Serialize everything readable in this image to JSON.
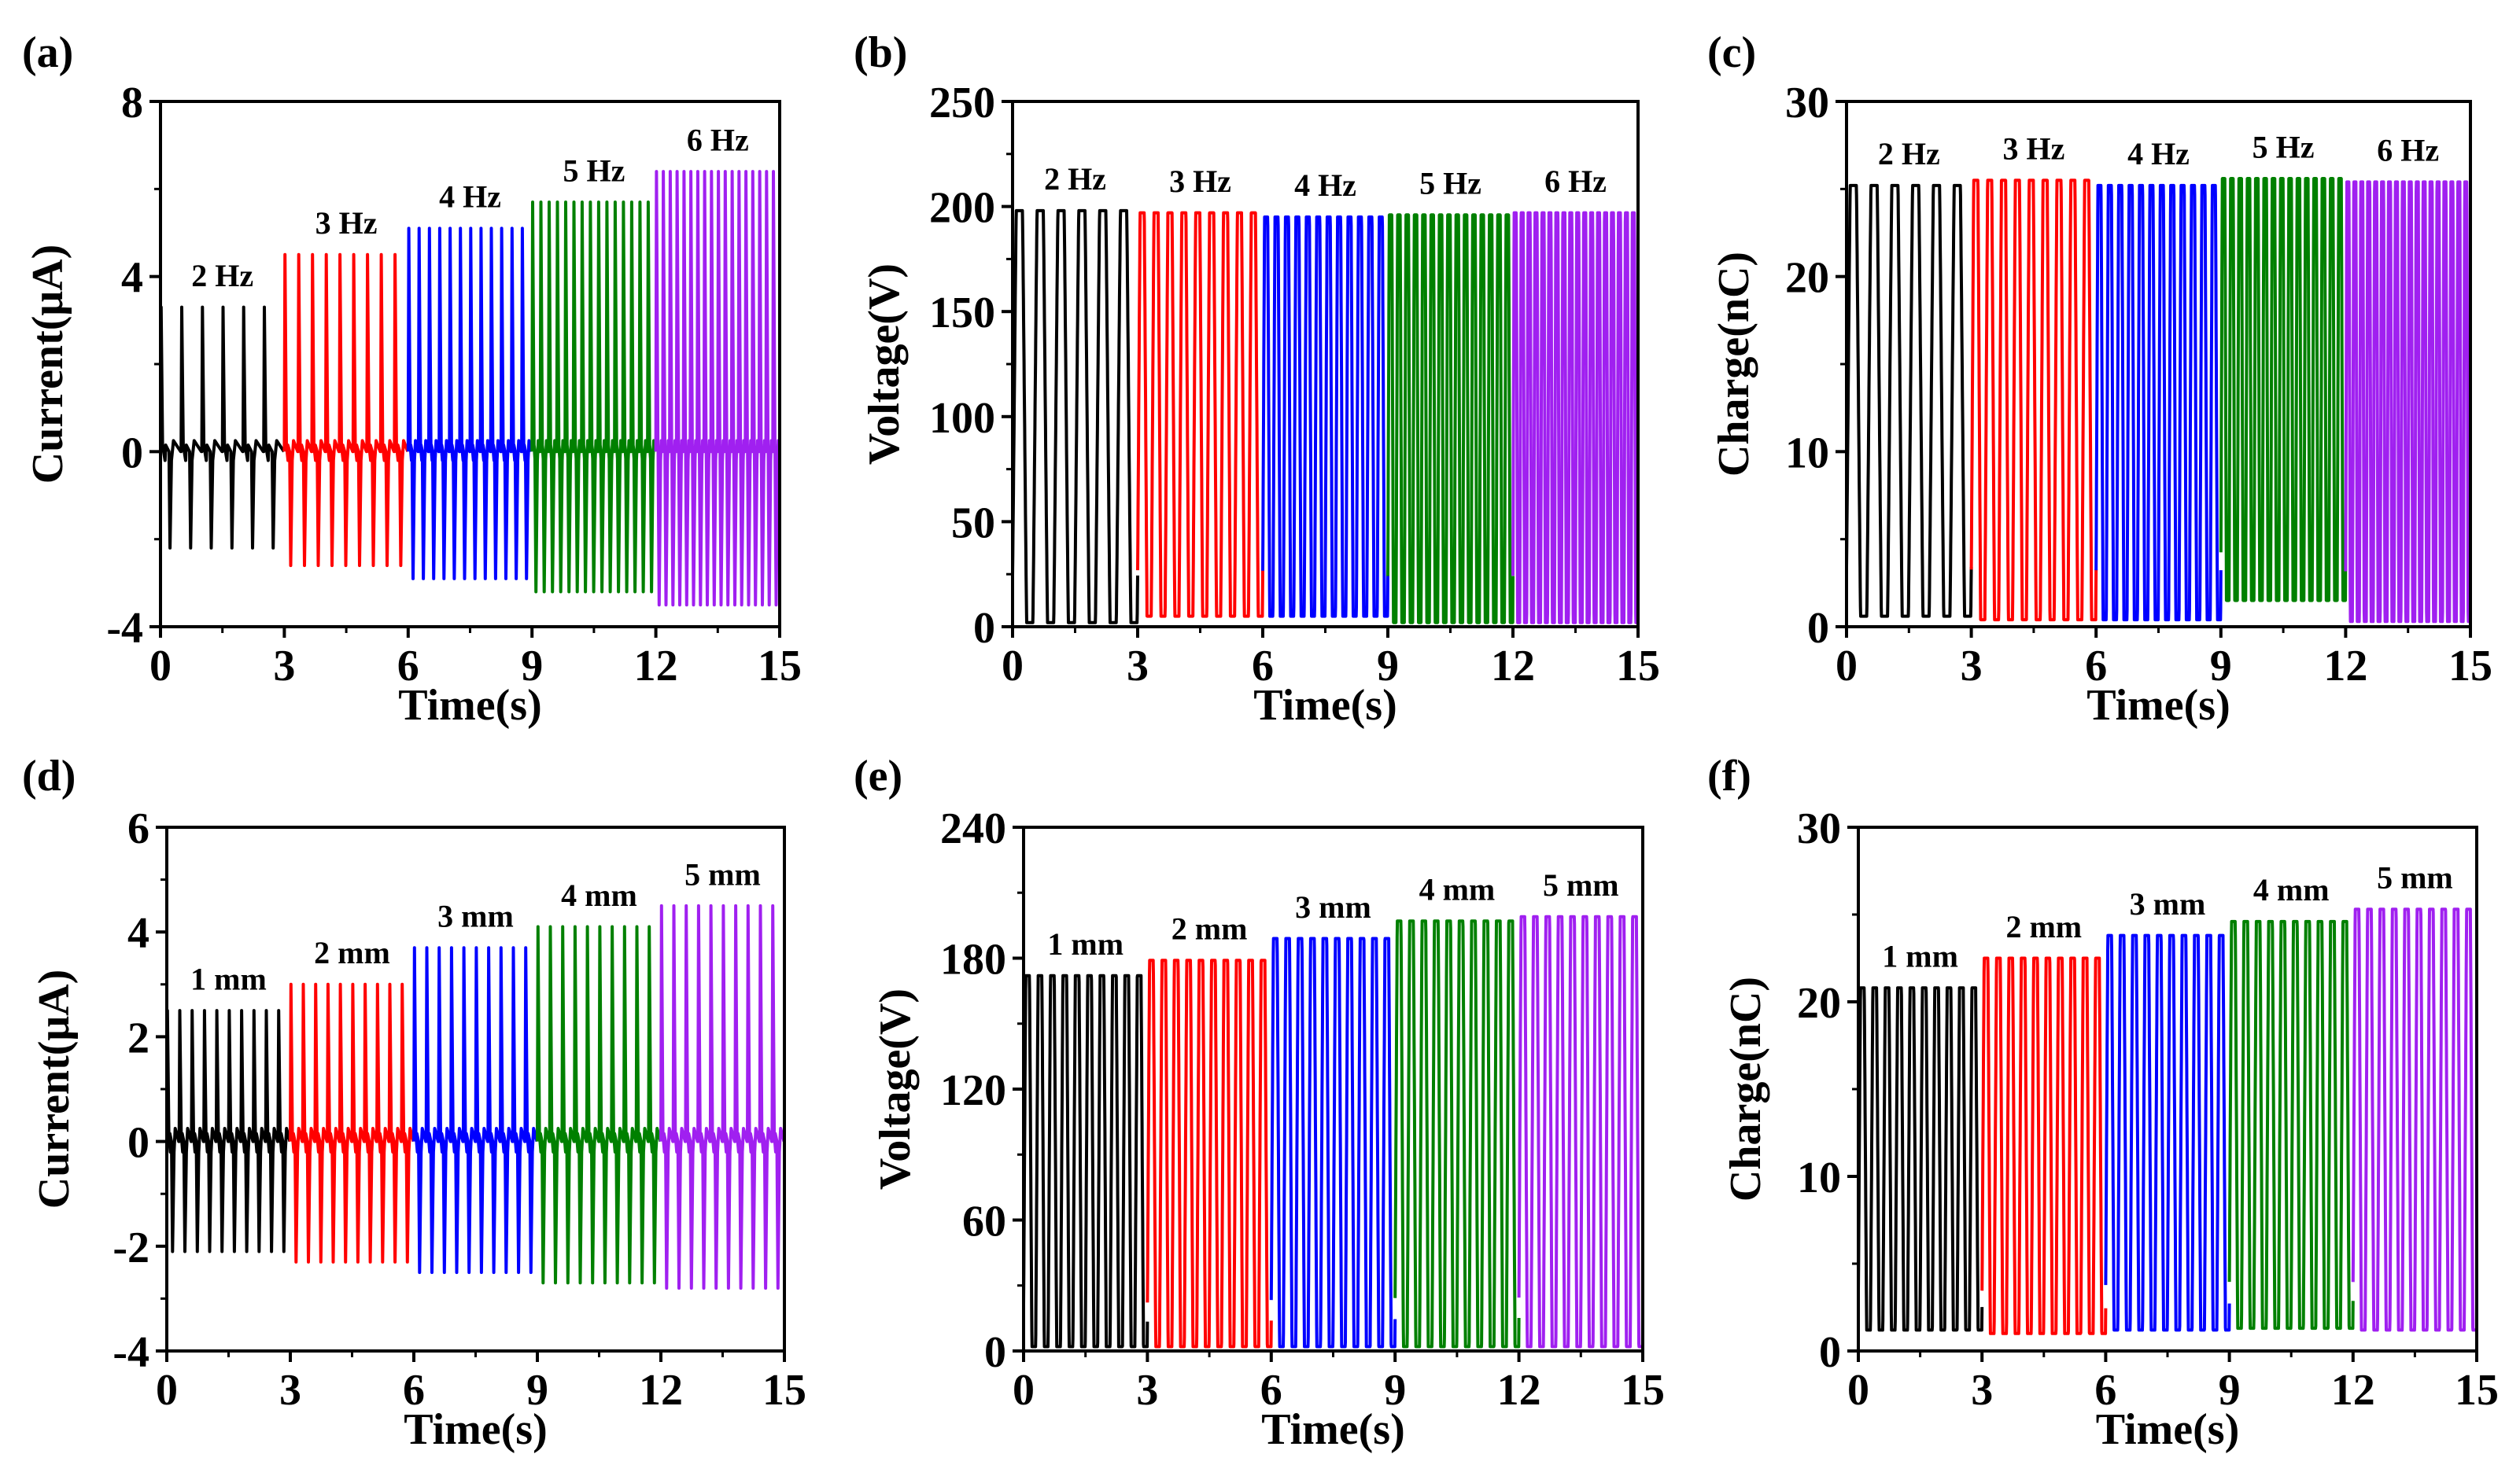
{
  "chart_data": [
    {
      "id": "a",
      "panel_label": "(a)",
      "type": "line",
      "xlabel": "Time(s)",
      "ylabel": "Current(μA)",
      "xlim": [
        0,
        15
      ],
      "ylim": [
        -4,
        8
      ],
      "xticks": [
        "0",
        "3",
        "6",
        "9",
        "12",
        "15"
      ],
      "yticks": [
        "-4",
        "0",
        "4",
        "8"
      ],
      "wave": "pulse",
      "series": [
        {
          "name": "2 Hz",
          "color": "#000000",
          "x_range": [
            0,
            3
          ],
          "freq_hz": 2,
          "peak": 3.3,
          "trough": -2.2
        },
        {
          "name": "3 Hz",
          "color": "#ff0000",
          "x_range": [
            3,
            6
          ],
          "freq_hz": 3,
          "peak": 4.5,
          "trough": -2.6
        },
        {
          "name": "4 Hz",
          "color": "#0000ff",
          "x_range": [
            6,
            9
          ],
          "freq_hz": 4,
          "peak": 5.1,
          "trough": -2.9
        },
        {
          "name": "5 Hz",
          "color": "#008000",
          "x_range": [
            9,
            12
          ],
          "freq_hz": 5,
          "peak": 5.7,
          "trough": -3.2
        },
        {
          "name": "6 Hz",
          "color": "#a020f0",
          "x_range": [
            12,
            15
          ],
          "freq_hz": 6,
          "peak": 6.4,
          "trough": -3.5
        }
      ]
    },
    {
      "id": "b",
      "panel_label": "(b)",
      "type": "line",
      "xlabel": "Time(s)",
      "ylabel": "Voltage(V)",
      "xlim": [
        0,
        15
      ],
      "ylim": [
        0,
        250
      ],
      "xticks": [
        "0",
        "3",
        "6",
        "9",
        "12",
        "15"
      ],
      "yticks": [
        "0",
        "50",
        "100",
        "150",
        "200",
        "250"
      ],
      "wave": "square",
      "series": [
        {
          "name": "2 Hz",
          "color": "#000000",
          "x_range": [
            0,
            3
          ],
          "freq_hz": 2,
          "peak": 198,
          "trough": 2
        },
        {
          "name": "3 Hz",
          "color": "#ff0000",
          "x_range": [
            3,
            6
          ],
          "freq_hz": 3,
          "peak": 197,
          "trough": 5
        },
        {
          "name": "4 Hz",
          "color": "#0000ff",
          "x_range": [
            6,
            9
          ],
          "freq_hz": 4,
          "peak": 195,
          "trough": 5
        },
        {
          "name": "5 Hz",
          "color": "#008000",
          "x_range": [
            9,
            12
          ],
          "freq_hz": 5,
          "peak": 196,
          "trough": 2
        },
        {
          "name": "6 Hz",
          "color": "#a020f0",
          "x_range": [
            12,
            15
          ],
          "freq_hz": 6,
          "peak": 197,
          "trough": 2
        }
      ]
    },
    {
      "id": "c",
      "panel_label": "(c)",
      "type": "line",
      "xlabel": "Time(s)",
      "ylabel": "Charge(nC)",
      "xlim": [
        0,
        15
      ],
      "ylim": [
        0,
        30
      ],
      "xticks": [
        "0",
        "3",
        "6",
        "9",
        "12",
        "15"
      ],
      "yticks": [
        "0",
        "10",
        "20",
        "30"
      ],
      "wave": "square",
      "series": [
        {
          "name": "2 Hz",
          "color": "#000000",
          "x_range": [
            0,
            3
          ],
          "freq_hz": 2,
          "peak": 25.2,
          "trough": 0.6
        },
        {
          "name": "3 Hz",
          "color": "#ff0000",
          "x_range": [
            3,
            6
          ],
          "freq_hz": 3,
          "peak": 25.5,
          "trough": 0.4
        },
        {
          "name": "4 Hz",
          "color": "#0000ff",
          "x_range": [
            6,
            9
          ],
          "freq_hz": 4,
          "peak": 25.2,
          "trough": 0.4
        },
        {
          "name": "5 Hz",
          "color": "#008000",
          "x_range": [
            9,
            12
          ],
          "freq_hz": 5,
          "peak": 25.6,
          "trough": 1.5
        },
        {
          "name": "6 Hz",
          "color": "#a020f0",
          "x_range": [
            12,
            15
          ],
          "freq_hz": 6,
          "peak": 25.4,
          "trough": 0.3
        }
      ]
    },
    {
      "id": "d",
      "panel_label": "(d)",
      "type": "line",
      "xlabel": "Time(s)",
      "ylabel": "Current(μA)",
      "xlim": [
        0,
        15
      ],
      "ylim": [
        -4,
        6
      ],
      "xticks": [
        "0",
        "3",
        "6",
        "9",
        "12",
        "15"
      ],
      "yticks": [
        "-4",
        "-2",
        "0",
        "2",
        "4",
        "6"
      ],
      "wave": "pulse",
      "series": [
        {
          "name": "1 mm",
          "color": "#000000",
          "x_range": [
            0,
            3
          ],
          "freq_hz": 3.33,
          "peak": 2.5,
          "trough": -2.1
        },
        {
          "name": "2 mm",
          "color": "#ff0000",
          "x_range": [
            3,
            6
          ],
          "freq_hz": 3.33,
          "peak": 3.0,
          "trough": -2.3
        },
        {
          "name": "3 mm",
          "color": "#0000ff",
          "x_range": [
            6,
            9
          ],
          "freq_hz": 3.33,
          "peak": 3.7,
          "trough": -2.5
        },
        {
          "name": "4 mm",
          "color": "#008000",
          "x_range": [
            9,
            12
          ],
          "freq_hz": 3.33,
          "peak": 4.1,
          "trough": -2.7
        },
        {
          "name": "5 mm",
          "color": "#a020f0",
          "x_range": [
            12,
            15
          ],
          "freq_hz": 3.33,
          "peak": 4.5,
          "trough": -2.8
        }
      ]
    },
    {
      "id": "e",
      "panel_label": "(e)",
      "type": "line",
      "xlabel": "Time(s)",
      "ylabel": "Voltage(V)",
      "xlim": [
        0,
        15
      ],
      "ylim": [
        0,
        240
      ],
      "xticks": [
        "0",
        "3",
        "6",
        "9",
        "12",
        "15"
      ],
      "yticks": [
        "0",
        "60",
        "120",
        "180",
        "240"
      ],
      "wave": "square",
      "series": [
        {
          "name": "1 mm",
          "color": "#000000",
          "x_range": [
            0,
            3
          ],
          "freq_hz": 3.33,
          "peak": 172,
          "trough": 2
        },
        {
          "name": "2 mm",
          "color": "#ff0000",
          "x_range": [
            3,
            6
          ],
          "freq_hz": 3.33,
          "peak": 179,
          "trough": 2
        },
        {
          "name": "3 mm",
          "color": "#0000ff",
          "x_range": [
            6,
            9
          ],
          "freq_hz": 3.33,
          "peak": 189,
          "trough": 2
        },
        {
          "name": "4 mm",
          "color": "#008000",
          "x_range": [
            9,
            12
          ],
          "freq_hz": 3.33,
          "peak": 197,
          "trough": 2
        },
        {
          "name": "5 mm",
          "color": "#a020f0",
          "x_range": [
            12,
            15
          ],
          "freq_hz": 3.33,
          "peak": 199,
          "trough": 2
        }
      ]
    },
    {
      "id": "f",
      "panel_label": "(f)",
      "type": "line",
      "xlabel": "Time(s)",
      "ylabel": "Charge(nC)",
      "xlim": [
        0,
        15
      ],
      "ylim": [
        0,
        30
      ],
      "xticks": [
        "0",
        "3",
        "6",
        "9",
        "12",
        "15"
      ],
      "yticks": [
        "0",
        "10",
        "20",
        "30"
      ],
      "wave": "square",
      "series": [
        {
          "name": "1 mm",
          "color": "#000000",
          "x_range": [
            0,
            3
          ],
          "freq_hz": 3.33,
          "peak": 20.8,
          "trough": 1.2
        },
        {
          "name": "2 mm",
          "color": "#ff0000",
          "x_range": [
            3,
            6
          ],
          "freq_hz": 3.33,
          "peak": 22.5,
          "trough": 1.0
        },
        {
          "name": "3 mm",
          "color": "#0000ff",
          "x_range": [
            6,
            9
          ],
          "freq_hz": 3.33,
          "peak": 23.8,
          "trough": 1.2
        },
        {
          "name": "4 mm",
          "color": "#008000",
          "x_range": [
            9,
            12
          ],
          "freq_hz": 3.33,
          "peak": 24.6,
          "trough": 1.3
        },
        {
          "name": "5 mm",
          "color": "#a020f0",
          "x_range": [
            12,
            15
          ],
          "freq_hz": 3.33,
          "peak": 25.3,
          "trough": 1.2
        }
      ]
    }
  ]
}
